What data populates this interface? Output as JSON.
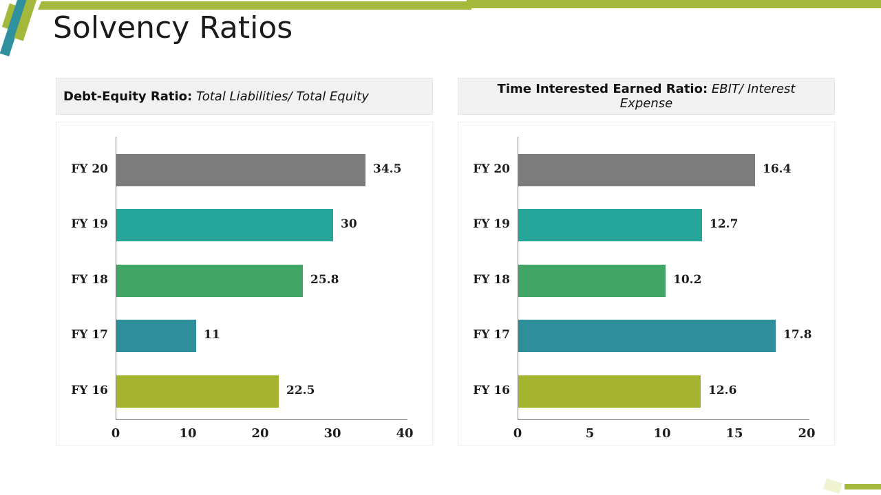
{
  "page": {
    "title": "Solvency Ratios"
  },
  "theme": {
    "accent_green": "#a4b93b",
    "accent_teal": "#2f909e",
    "header_bg": "#f1f1f1",
    "axis_color": "#808080"
  },
  "chart_data": [
    {
      "type": "bar",
      "orientation": "horizontal",
      "header_bold": "Debt-Equity Ratio:",
      "header_italic": " Total Liabilities/ Total Equity",
      "categories": [
        "FY 20",
        "FY 19",
        "FY 18",
        "FY 17",
        "FY 16"
      ],
      "values": [
        34.5,
        30,
        25.8,
        11,
        22.5
      ],
      "data_labels": [
        "34.5",
        "30",
        "25.8",
        "11",
        "22.5"
      ],
      "bar_colors": [
        "#7c7c7c",
        "#26a69a",
        "#41a566",
        "#2e8f9b",
        "#a5b42e"
      ],
      "xlim": [
        0,
        40
      ],
      "x_ticks": [
        "0",
        "10",
        "20",
        "30",
        "40"
      ],
      "grid": false,
      "legend": "none"
    },
    {
      "type": "bar",
      "orientation": "horizontal",
      "header_bold": "Time Interested Earned Ratio:",
      "header_italic": " EBIT/ Interest Expense",
      "categories": [
        "FY 20",
        "FY 19",
        "FY 18",
        "FY 17",
        "FY 16"
      ],
      "values": [
        16.4,
        12.7,
        10.2,
        17.8,
        12.6
      ],
      "data_labels": [
        "16.4",
        "12.7",
        "10.2",
        "17.8",
        "12.6"
      ],
      "bar_colors": [
        "#7c7c7c",
        "#26a69a",
        "#41a566",
        "#2e8f9b",
        "#a5b42e"
      ],
      "xlim": [
        0,
        20
      ],
      "x_ticks": [
        "0",
        "5",
        "10",
        "15",
        "20"
      ],
      "grid": false,
      "legend": "none"
    }
  ]
}
